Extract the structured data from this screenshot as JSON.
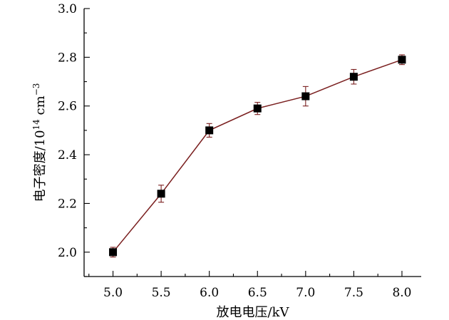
{
  "chart_data": {
    "type": "line",
    "title": "",
    "xlabel": "放电电压/kV",
    "ylabel": "电子密度/10",
    "ylabel_sup": "14",
    "ylabel_unit": " cm",
    "ylabel_unit_sup": "−3",
    "xlim": [
      4.7,
      8.2
    ],
    "ylim": [
      1.9,
      3.0
    ],
    "x_ticks": [
      "5.0",
      "5.5",
      "6.0",
      "6.5",
      "7.0",
      "7.5",
      "8.0"
    ],
    "y_ticks": [
      "2.0",
      "2.2",
      "2.4",
      "2.6",
      "2.8",
      "3.0"
    ],
    "x": [
      5.0,
      5.5,
      6.0,
      6.5,
      7.0,
      7.5,
      8.0
    ],
    "y": [
      2.0,
      2.24,
      2.5,
      2.59,
      2.64,
      2.72,
      2.79
    ],
    "err": [
      0.02,
      0.035,
      0.028,
      0.025,
      0.04,
      0.03,
      0.02
    ],
    "grid": false,
    "colors": {
      "line": "#7a1f1f",
      "marker": "#000000",
      "errorbar": "#7a1f1f"
    }
  }
}
